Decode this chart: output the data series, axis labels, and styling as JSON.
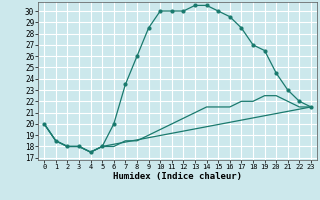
{
  "title": "",
  "xlabel": "Humidex (Indice chaleur)",
  "bg_color": "#cce8ec",
  "line_color": "#1a7a6e",
  "grid_color": "#ffffff",
  "xlim": [
    -0.5,
    23.5
  ],
  "ylim": [
    16.8,
    30.8
  ],
  "xticks": [
    0,
    1,
    2,
    3,
    4,
    5,
    6,
    7,
    8,
    9,
    10,
    11,
    12,
    13,
    14,
    15,
    16,
    17,
    18,
    19,
    20,
    21,
    22,
    23
  ],
  "yticks": [
    17,
    18,
    19,
    20,
    21,
    22,
    23,
    24,
    25,
    26,
    27,
    28,
    29,
    30
  ],
  "line1_x": [
    0,
    1,
    2,
    3,
    4,
    5,
    6,
    7,
    8,
    9,
    10,
    11,
    12,
    13,
    14,
    15,
    16,
    17,
    18,
    19,
    20,
    21,
    22,
    23
  ],
  "line1_y": [
    20,
    18.5,
    18,
    18,
    17.5,
    18,
    20,
    23.5,
    26,
    28.5,
    30,
    30,
    30,
    30.5,
    30.5,
    30,
    29.5,
    28.5,
    27,
    26.5,
    24.5,
    23,
    22,
    21.5
  ],
  "line2_x": [
    0,
    1,
    2,
    3,
    4,
    5,
    6,
    7,
    8,
    9,
    10,
    11,
    12,
    13,
    14,
    15,
    16,
    17,
    18,
    19,
    20,
    21,
    22,
    23
  ],
  "line2_y": [
    20,
    18.5,
    18,
    18,
    17.5,
    18.0,
    18.0,
    18.5,
    18.5,
    19.0,
    19.5,
    20.0,
    20.5,
    21.0,
    21.5,
    21.5,
    21.5,
    22.0,
    22.0,
    22.5,
    22.5,
    22.0,
    21.5,
    21.5
  ],
  "line3_x": [
    0,
    1,
    2,
    3,
    4,
    5,
    23
  ],
  "line3_y": [
    20,
    18.5,
    18,
    18,
    17.5,
    18,
    21.5
  ]
}
